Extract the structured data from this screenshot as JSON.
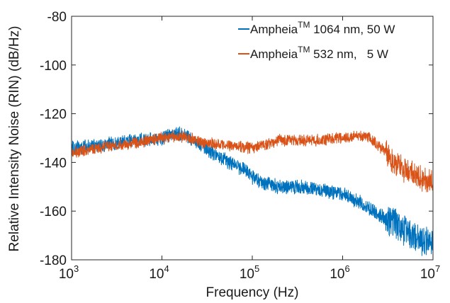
{
  "chart_data": {
    "type": "line",
    "title": "",
    "xlabel": "Frequency (Hz)",
    "ylabel": "Relative Intensity Noise (RIN) (dB/Hz)",
    "xscale": "log",
    "xlim": [
      1000,
      10000000
    ],
    "ylim": [
      -180,
      -80
    ],
    "x_ticks": [
      1000,
      10000,
      100000,
      1000000,
      10000000
    ],
    "y_ticks": [
      -80,
      -100,
      -120,
      -140,
      -160,
      -180
    ],
    "x_tick_base": "10",
    "x_tick_exponents": [
      "3",
      "4",
      "5",
      "6",
      "7"
    ],
    "y_tick_labels": [
      "-80",
      "-100",
      "-120",
      "-140",
      "-160",
      "-180"
    ],
    "grid": false,
    "legend_position": "top-right",
    "series": [
      {
        "name": "Ampheia",
        "name_superscript": "TM",
        "name_suffix": "1064 nm, 50 W",
        "color": "#0072bd",
        "noise_amplitude_db": 2.5,
        "x": [
          1000,
          2000,
          5000,
          10000,
          15000,
          20000,
          30000,
          50000,
          80000,
          100000,
          150000,
          200000,
          300000,
          500000,
          700000,
          1000000,
          1500000,
          2000000,
          3000000,
          4000000,
          6000000,
          8000000,
          10000000
        ],
        "y": [
          -134,
          -133,
          -131,
          -130,
          -128,
          -130,
          -134,
          -139,
          -143,
          -146,
          -149,
          -150,
          -150,
          -151,
          -152,
          -153,
          -156,
          -159,
          -163,
          -166,
          -170,
          -172,
          -173
        ]
      },
      {
        "name": "Ampheia",
        "name_superscript": "TM",
        "name_suffix": "532 nm,   5 W",
        "color": "#d95319",
        "noise_amplitude_db": 2.0,
        "x": [
          1000,
          2000,
          5000,
          10000,
          15000,
          20000,
          30000,
          50000,
          100000,
          200000,
          500000,
          1000000,
          1500000,
          2000000,
          3000000,
          4000000,
          6000000,
          8000000,
          10000000
        ],
        "y": [
          -136,
          -134,
          -132,
          -130,
          -129,
          -130,
          -132,
          -133,
          -134,
          -131,
          -131,
          -130,
          -129,
          -130,
          -136,
          -141,
          -145,
          -147,
          -149
        ]
      }
    ]
  }
}
